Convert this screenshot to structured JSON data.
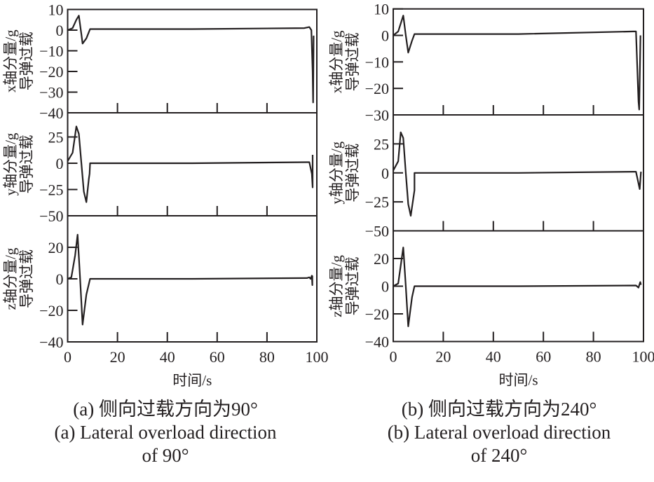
{
  "chart_data": [
    {
      "type": "line",
      "panel": "a",
      "caption_cn": "(a) 侧向过载方向为90°",
      "caption_en_1": "(a) Lateral overload direction",
      "caption_en_2": "of 90°",
      "xlabel": "时间/s",
      "xlim": [
        0,
        100
      ],
      "xticks": [
        0,
        20,
        40,
        60,
        80,
        100
      ],
      "subplots": [
        {
          "ylabel_1": "x轴分量/g",
          "ylabel_2": "导弹过载",
          "ylim": [
            -40,
            10
          ],
          "yticks": [
            10,
            0,
            -10,
            -20,
            -30,
            -40
          ],
          "x": [
            0,
            2,
            3.5,
            4.5,
            5.5,
            6,
            7.5,
            9,
            50,
            95,
            97,
            97.8,
            98.3,
            98.5,
            98.7,
            99
          ],
          "y": [
            0,
            1,
            5,
            7,
            -2,
            -6.5,
            -4,
            0.5,
            0.5,
            1,
            1.5,
            0,
            -20,
            -35,
            -3,
            -3
          ]
        },
        {
          "ylabel_1": "y轴分量/g",
          "ylabel_2": "导弹过载",
          "ylim": [
            -50,
            48
          ],
          "yticks": [
            25,
            0,
            -25,
            -50
          ],
          "x": [
            0,
            2,
            3.5,
            4.5,
            5.5,
            6.5,
            7.5,
            8.5,
            8.8,
            9,
            50,
            96,
            97,
            98,
            98.3,
            98.3
          ],
          "y": [
            2,
            10,
            35,
            28,
            0,
            -27,
            -37,
            -15,
            -10,
            0,
            0,
            1,
            1,
            -10,
            -23,
            8
          ]
        },
        {
          "ylabel_1": "z轴分量/g",
          "ylabel_2": "导弹过载",
          "ylim": [
            -40,
            40
          ],
          "yticks": [
            20,
            0,
            -20,
            -40
          ],
          "x": [
            0,
            1.5,
            3,
            4,
            5,
            6,
            7.5,
            9,
            50,
            96,
            97,
            97.5,
            98,
            98.2,
            98.2
          ],
          "y": [
            0,
            1,
            15,
            28,
            0,
            -29,
            -10,
            0,
            0,
            0.5,
            1,
            0,
            2,
            -4,
            2
          ]
        }
      ]
    },
    {
      "type": "line",
      "panel": "b",
      "caption_cn": "(b) 侧向过载方向为240°",
      "caption_en_1": "(b) Lateral overload direction",
      "caption_en_2": "of 240°",
      "xlabel": "时间/s",
      "xlim": [
        0,
        100
      ],
      "xticks": [
        0,
        20,
        40,
        60,
        80,
        100
      ],
      "subplots": [
        {
          "ylabel_1": "x轴分量/g",
          "ylabel_2": "导弹过载",
          "ylim": [
            -30,
            10
          ],
          "yticks": [
            10,
            0,
            -10,
            -20,
            -30
          ],
          "x": [
            0,
            2,
            4,
            5,
            6,
            7.5,
            8.5,
            50,
            96,
            97,
            98,
            98.3,
            98.8
          ],
          "y": [
            0,
            1.5,
            7.5,
            0,
            -6.5,
            -2,
            0.5,
            0.5,
            1.5,
            1.5,
            -25,
            -28,
            0
          ]
        },
        {
          "ylabel_1": "y轴分量/g",
          "ylabel_2": "导弹过载",
          "ylim": [
            -50,
            50
          ],
          "yticks": [
            25,
            0,
            -25,
            -50
          ],
          "x": [
            0,
            2,
            3,
            4,
            5,
            6,
            7,
            8.5,
            8.5,
            50,
            96,
            97,
            98.5,
            99
          ],
          "y": [
            2,
            10,
            35,
            30,
            0,
            -27,
            -37,
            -15,
            0,
            0,
            1,
            1,
            -14,
            1
          ]
        },
        {
          "ylabel_1": "z轴分量/g",
          "ylabel_2": "导弹过载",
          "ylim": [
            -40,
            40
          ],
          "yticks": [
            20,
            0,
            -20,
            -40
          ],
          "x": [
            0,
            2,
            3,
            4,
            5,
            6,
            7.5,
            8.5,
            50,
            97,
            98,
            98.7,
            99
          ],
          "y": [
            0,
            2,
            15,
            28,
            0,
            -29,
            -8,
            0,
            0,
            0.5,
            -1,
            3,
            1
          ]
        }
      ]
    }
  ]
}
